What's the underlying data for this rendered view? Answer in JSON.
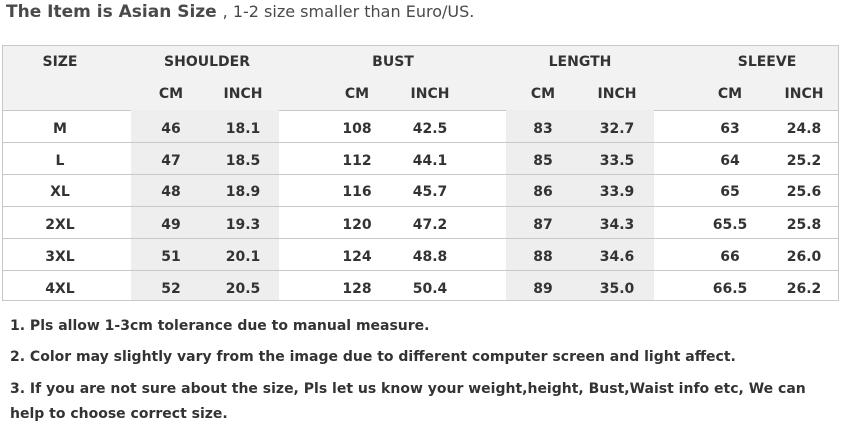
{
  "heading": {
    "main": "The Item is Asian Size",
    "sub": ", 1-2 size smaller than Euro/US."
  },
  "table": {
    "groups": [
      "SIZE",
      "SHOULDER",
      "BUST",
      "LENGTH",
      "SLEEVE"
    ],
    "units": [
      "CM",
      "INCH",
      "CM",
      "INCH",
      "CM",
      "INCH",
      "CM",
      "INCH"
    ],
    "rows": [
      [
        "M",
        "46",
        "18.1",
        "108",
        "42.5",
        "83",
        "32.7",
        "63",
        "24.8"
      ],
      [
        "L",
        "47",
        "18.5",
        "112",
        "44.1",
        "85",
        "33.5",
        "64",
        "25.2"
      ],
      [
        "XL",
        "48",
        "18.9",
        "116",
        "45.7",
        "86",
        "33.9",
        "65",
        "25.6"
      ],
      [
        "2XL",
        "49",
        "19.3",
        "120",
        "47.2",
        "87",
        "34.3",
        "65.5",
        "25.8"
      ],
      [
        "3XL",
        "51",
        "20.1",
        "124",
        "48.8",
        "88",
        "34.6",
        "66",
        "26.0"
      ],
      [
        "4XL",
        "52",
        "20.5",
        "128",
        "50.4",
        "89",
        "35.0",
        "66.5",
        "26.2"
      ]
    ]
  },
  "notes": [
    "1. Pls allow 1-3cm tolerance due to manual measure.",
    "2. Color may slightly vary from the image due to different computer screen and light affect.",
    "3. If you are not sure about the size, Pls let us know your weight,height, Bust,Waist info etc, We can",
    "help to choose correct size."
  ]
}
